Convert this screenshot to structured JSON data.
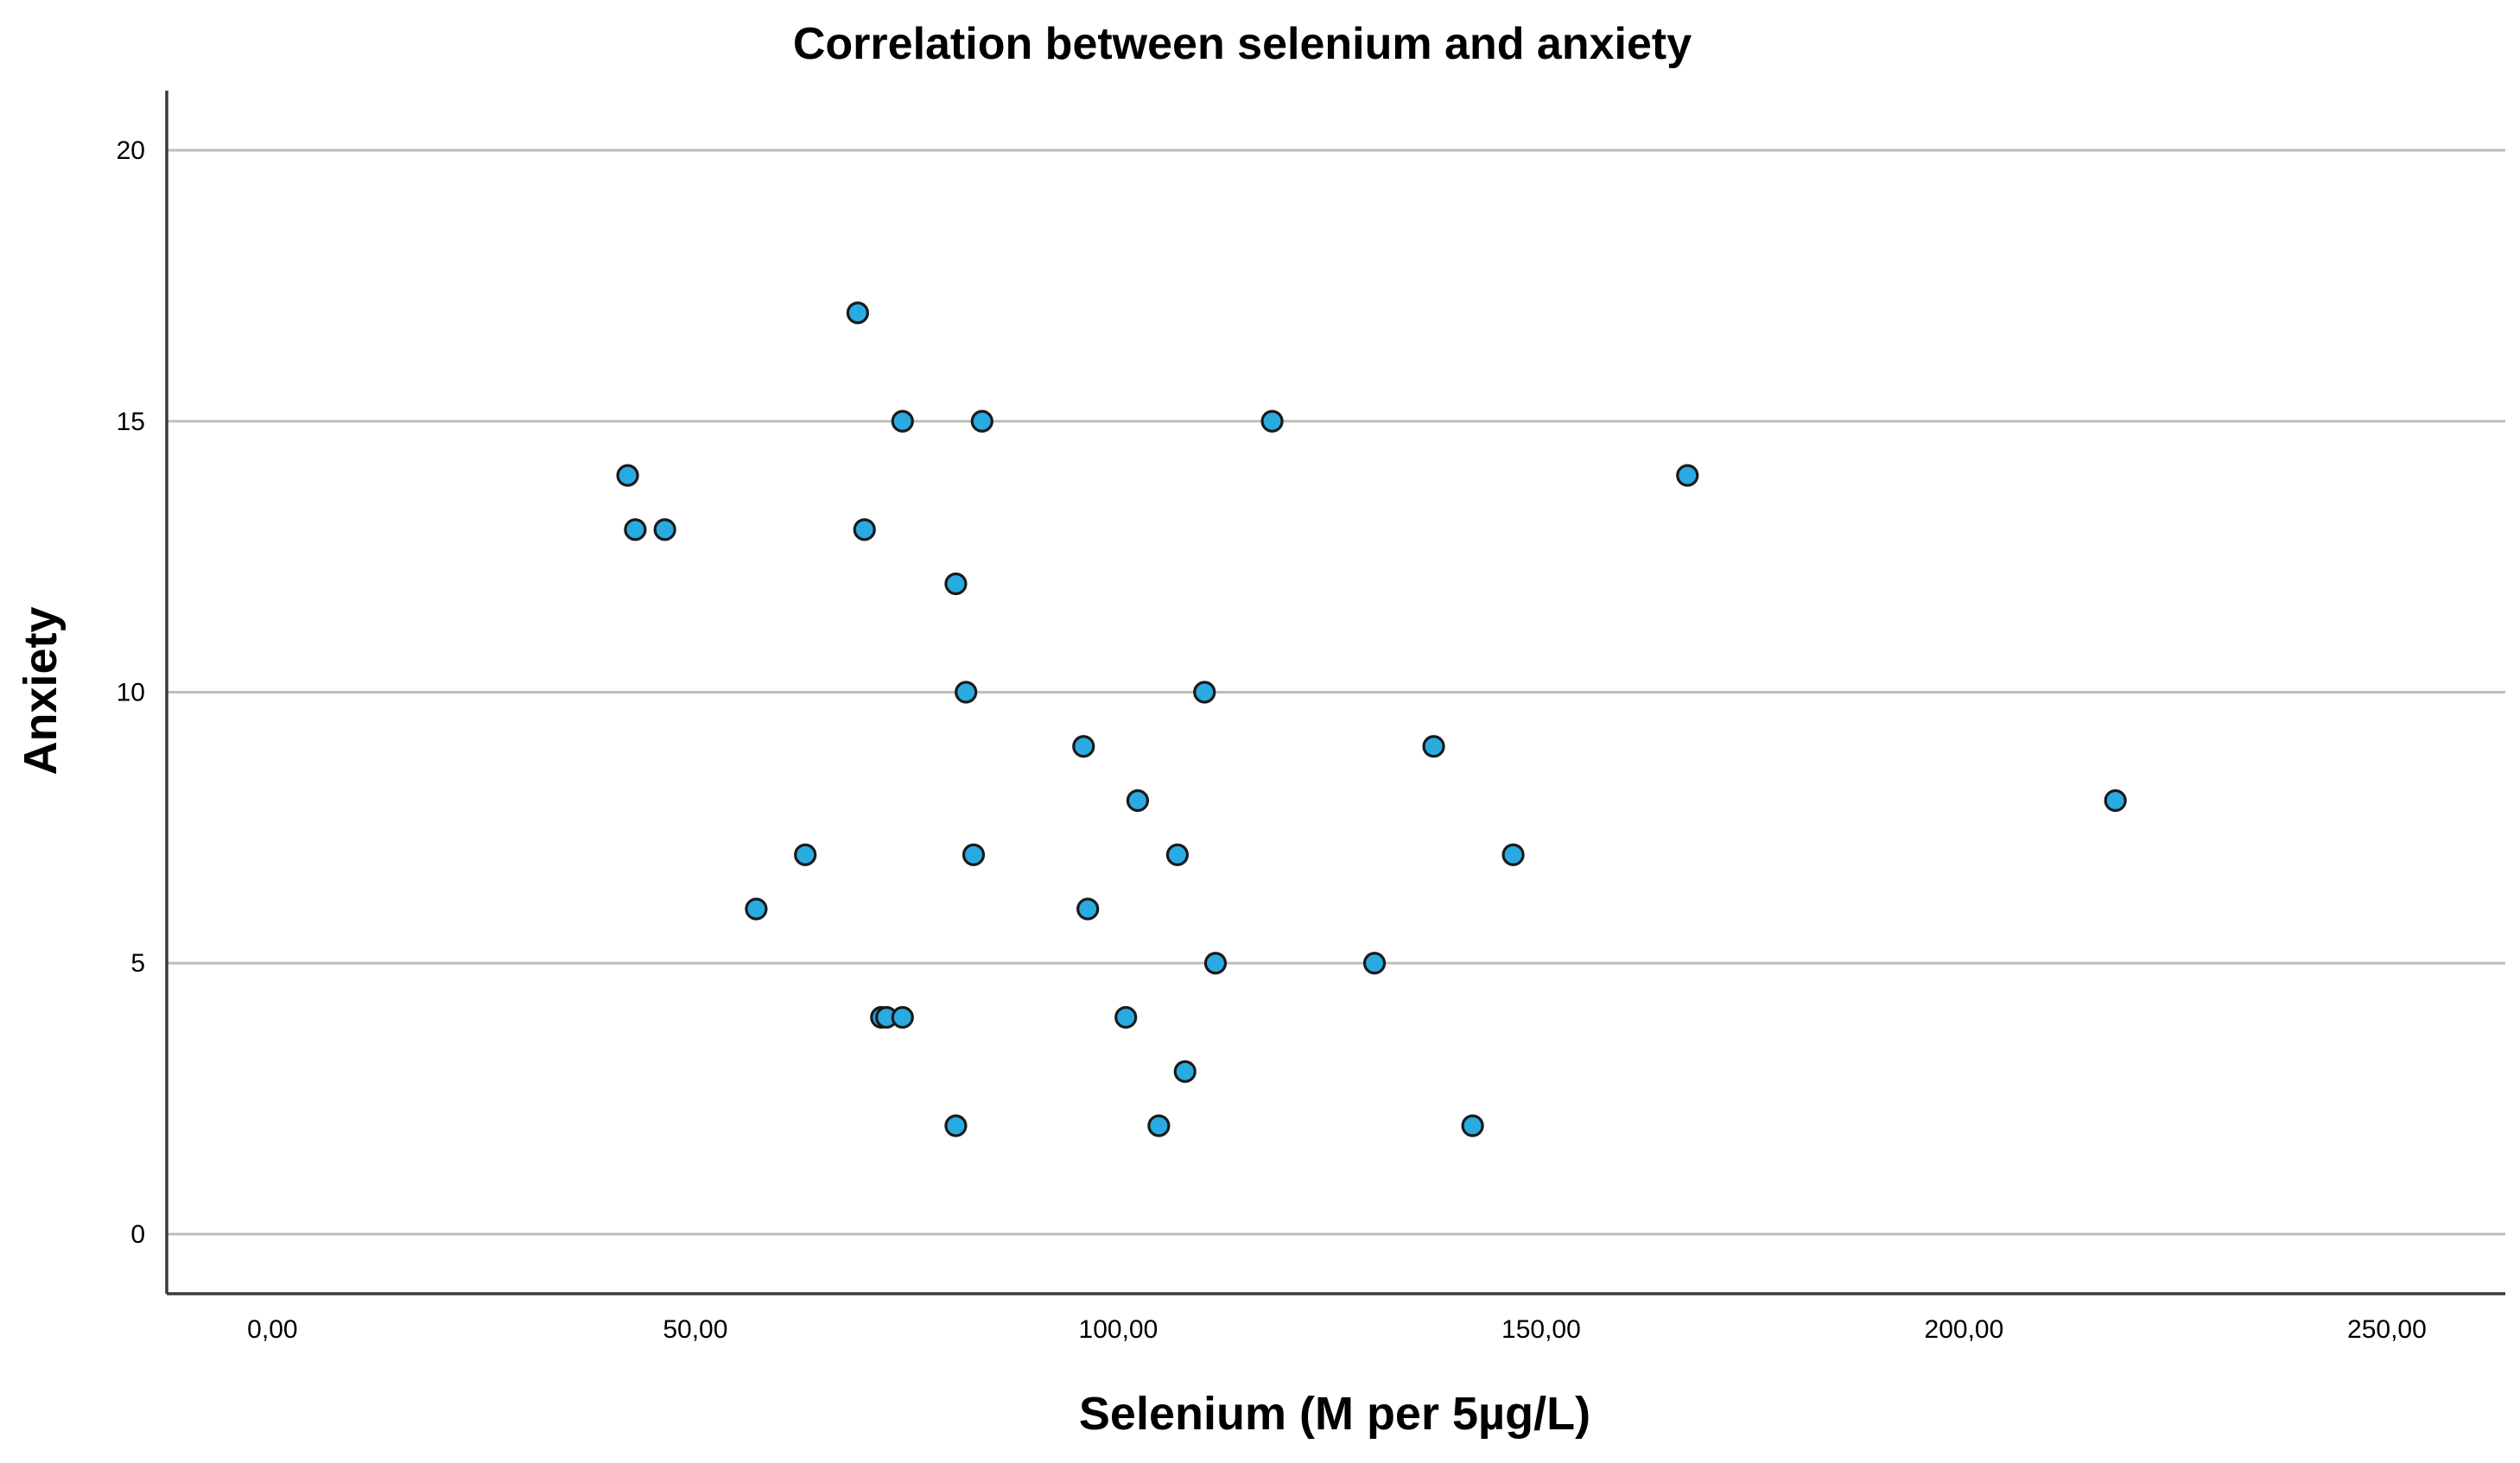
{
  "chart_data": {
    "type": "scatter",
    "title": "Correlation between selenium and anxiety",
    "xlabel": "Selenium (M per 5µg/L)",
    "ylabel": "Anxiety",
    "xlim": [
      -12.5,
      264
    ],
    "ylim": [
      -1.1,
      21.1
    ],
    "x_ticks": [
      {
        "value": 0,
        "label": "0,00"
      },
      {
        "value": 50,
        "label": "50,00"
      },
      {
        "value": 100,
        "label": "100,00"
      },
      {
        "value": 150,
        "label": "150,00"
      },
      {
        "value": 200,
        "label": "200,00"
      },
      {
        "value": 250,
        "label": "250,00"
      }
    ],
    "y_ticks": [
      {
        "value": 0,
        "label": "0"
      },
      {
        "value": 5,
        "label": "5"
      },
      {
        "value": 10,
        "label": "10"
      },
      {
        "value": 15,
        "label": "15"
      },
      {
        "value": 20,
        "label": "20"
      }
    ],
    "grid": "horizontal",
    "marker_color": "#29abe2",
    "marker_edge_color": "#1a1a1a",
    "points": [
      {
        "x": 69.2,
        "y": 17
      },
      {
        "x": 74.5,
        "y": 15
      },
      {
        "x": 83.9,
        "y": 15
      },
      {
        "x": 118.2,
        "y": 15
      },
      {
        "x": 42.0,
        "y": 14
      },
      {
        "x": 167.3,
        "y": 14
      },
      {
        "x": 42.9,
        "y": 13
      },
      {
        "x": 46.4,
        "y": 13
      },
      {
        "x": 70.0,
        "y": 13
      },
      {
        "x": 80.8,
        "y": 12
      },
      {
        "x": 82.0,
        "y": 10
      },
      {
        "x": 110.2,
        "y": 10
      },
      {
        "x": 95.9,
        "y": 9
      },
      {
        "x": 137.3,
        "y": 9
      },
      {
        "x": 102.3,
        "y": 8
      },
      {
        "x": 217.9,
        "y": 8
      },
      {
        "x": 63.0,
        "y": 7
      },
      {
        "x": 82.9,
        "y": 7
      },
      {
        "x": 107.0,
        "y": 7
      },
      {
        "x": 146.7,
        "y": 7
      },
      {
        "x": 57.2,
        "y": 6
      },
      {
        "x": 96.4,
        "y": 6
      },
      {
        "x": 111.5,
        "y": 5
      },
      {
        "x": 130.3,
        "y": 5
      },
      {
        "x": 72.0,
        "y": 4
      },
      {
        "x": 72.6,
        "y": 4
      },
      {
        "x": 74.5,
        "y": 4
      },
      {
        "x": 100.9,
        "y": 4
      },
      {
        "x": 107.9,
        "y": 3
      },
      {
        "x": 80.8,
        "y": 2
      },
      {
        "x": 104.8,
        "y": 2
      },
      {
        "x": 141.9,
        "y": 2
      }
    ]
  }
}
